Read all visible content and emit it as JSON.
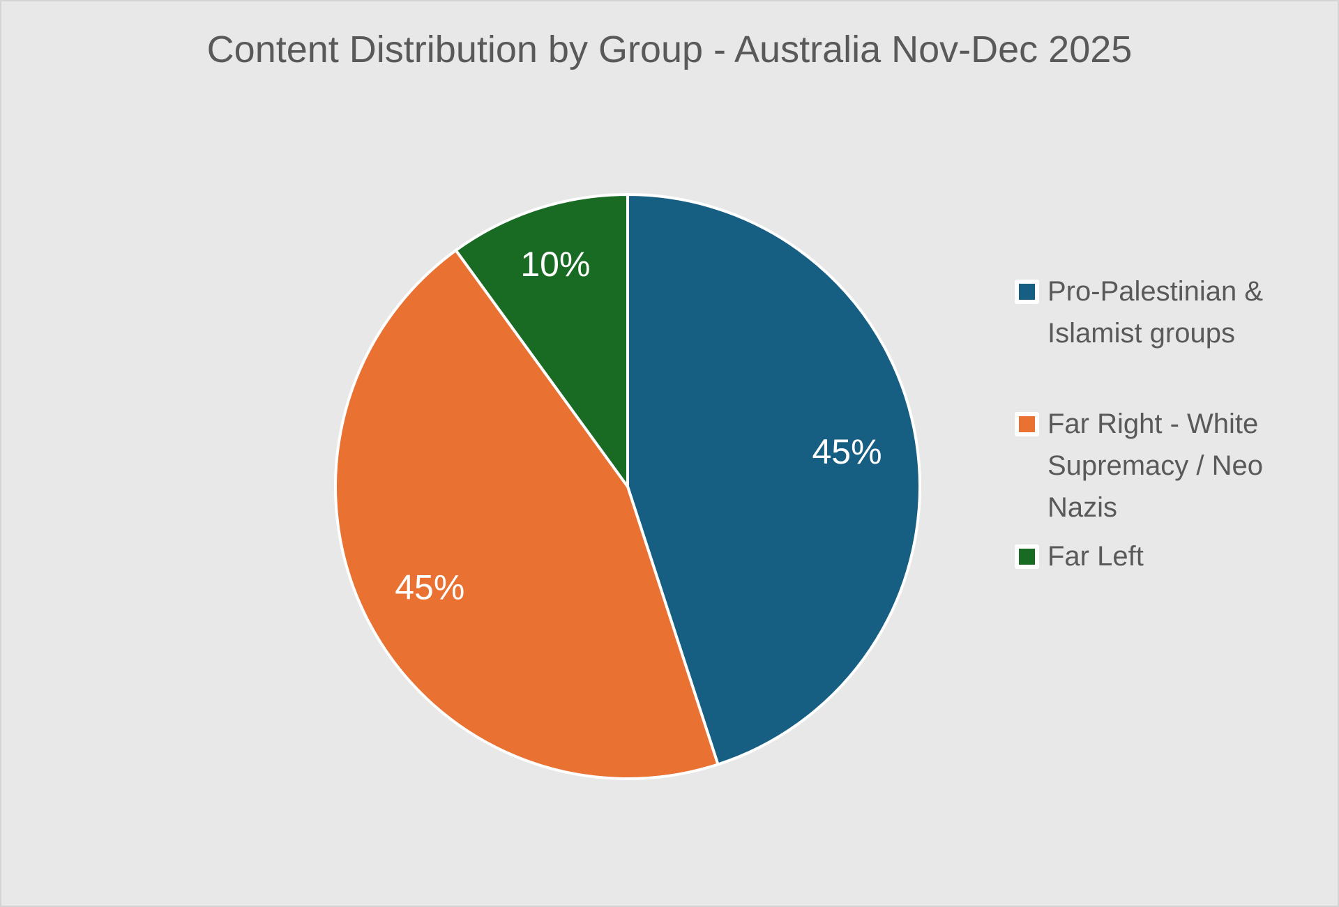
{
  "chart_data": {
    "type": "pie",
    "title": "Content Distribution by Group - Australia Nov-Dec 2025",
    "categories": [
      "Pro-Palestinian & Islamist groups",
      "Far Right - White Supremacy / Neo Nazis",
      "Far Left"
    ],
    "values": [
      45,
      45,
      10
    ],
    "data_labels": [
      "45%",
      "45%",
      "10%"
    ],
    "colors": [
      "#165f82",
      "#e97132",
      "#196b24"
    ],
    "legend_position": "right"
  }
}
